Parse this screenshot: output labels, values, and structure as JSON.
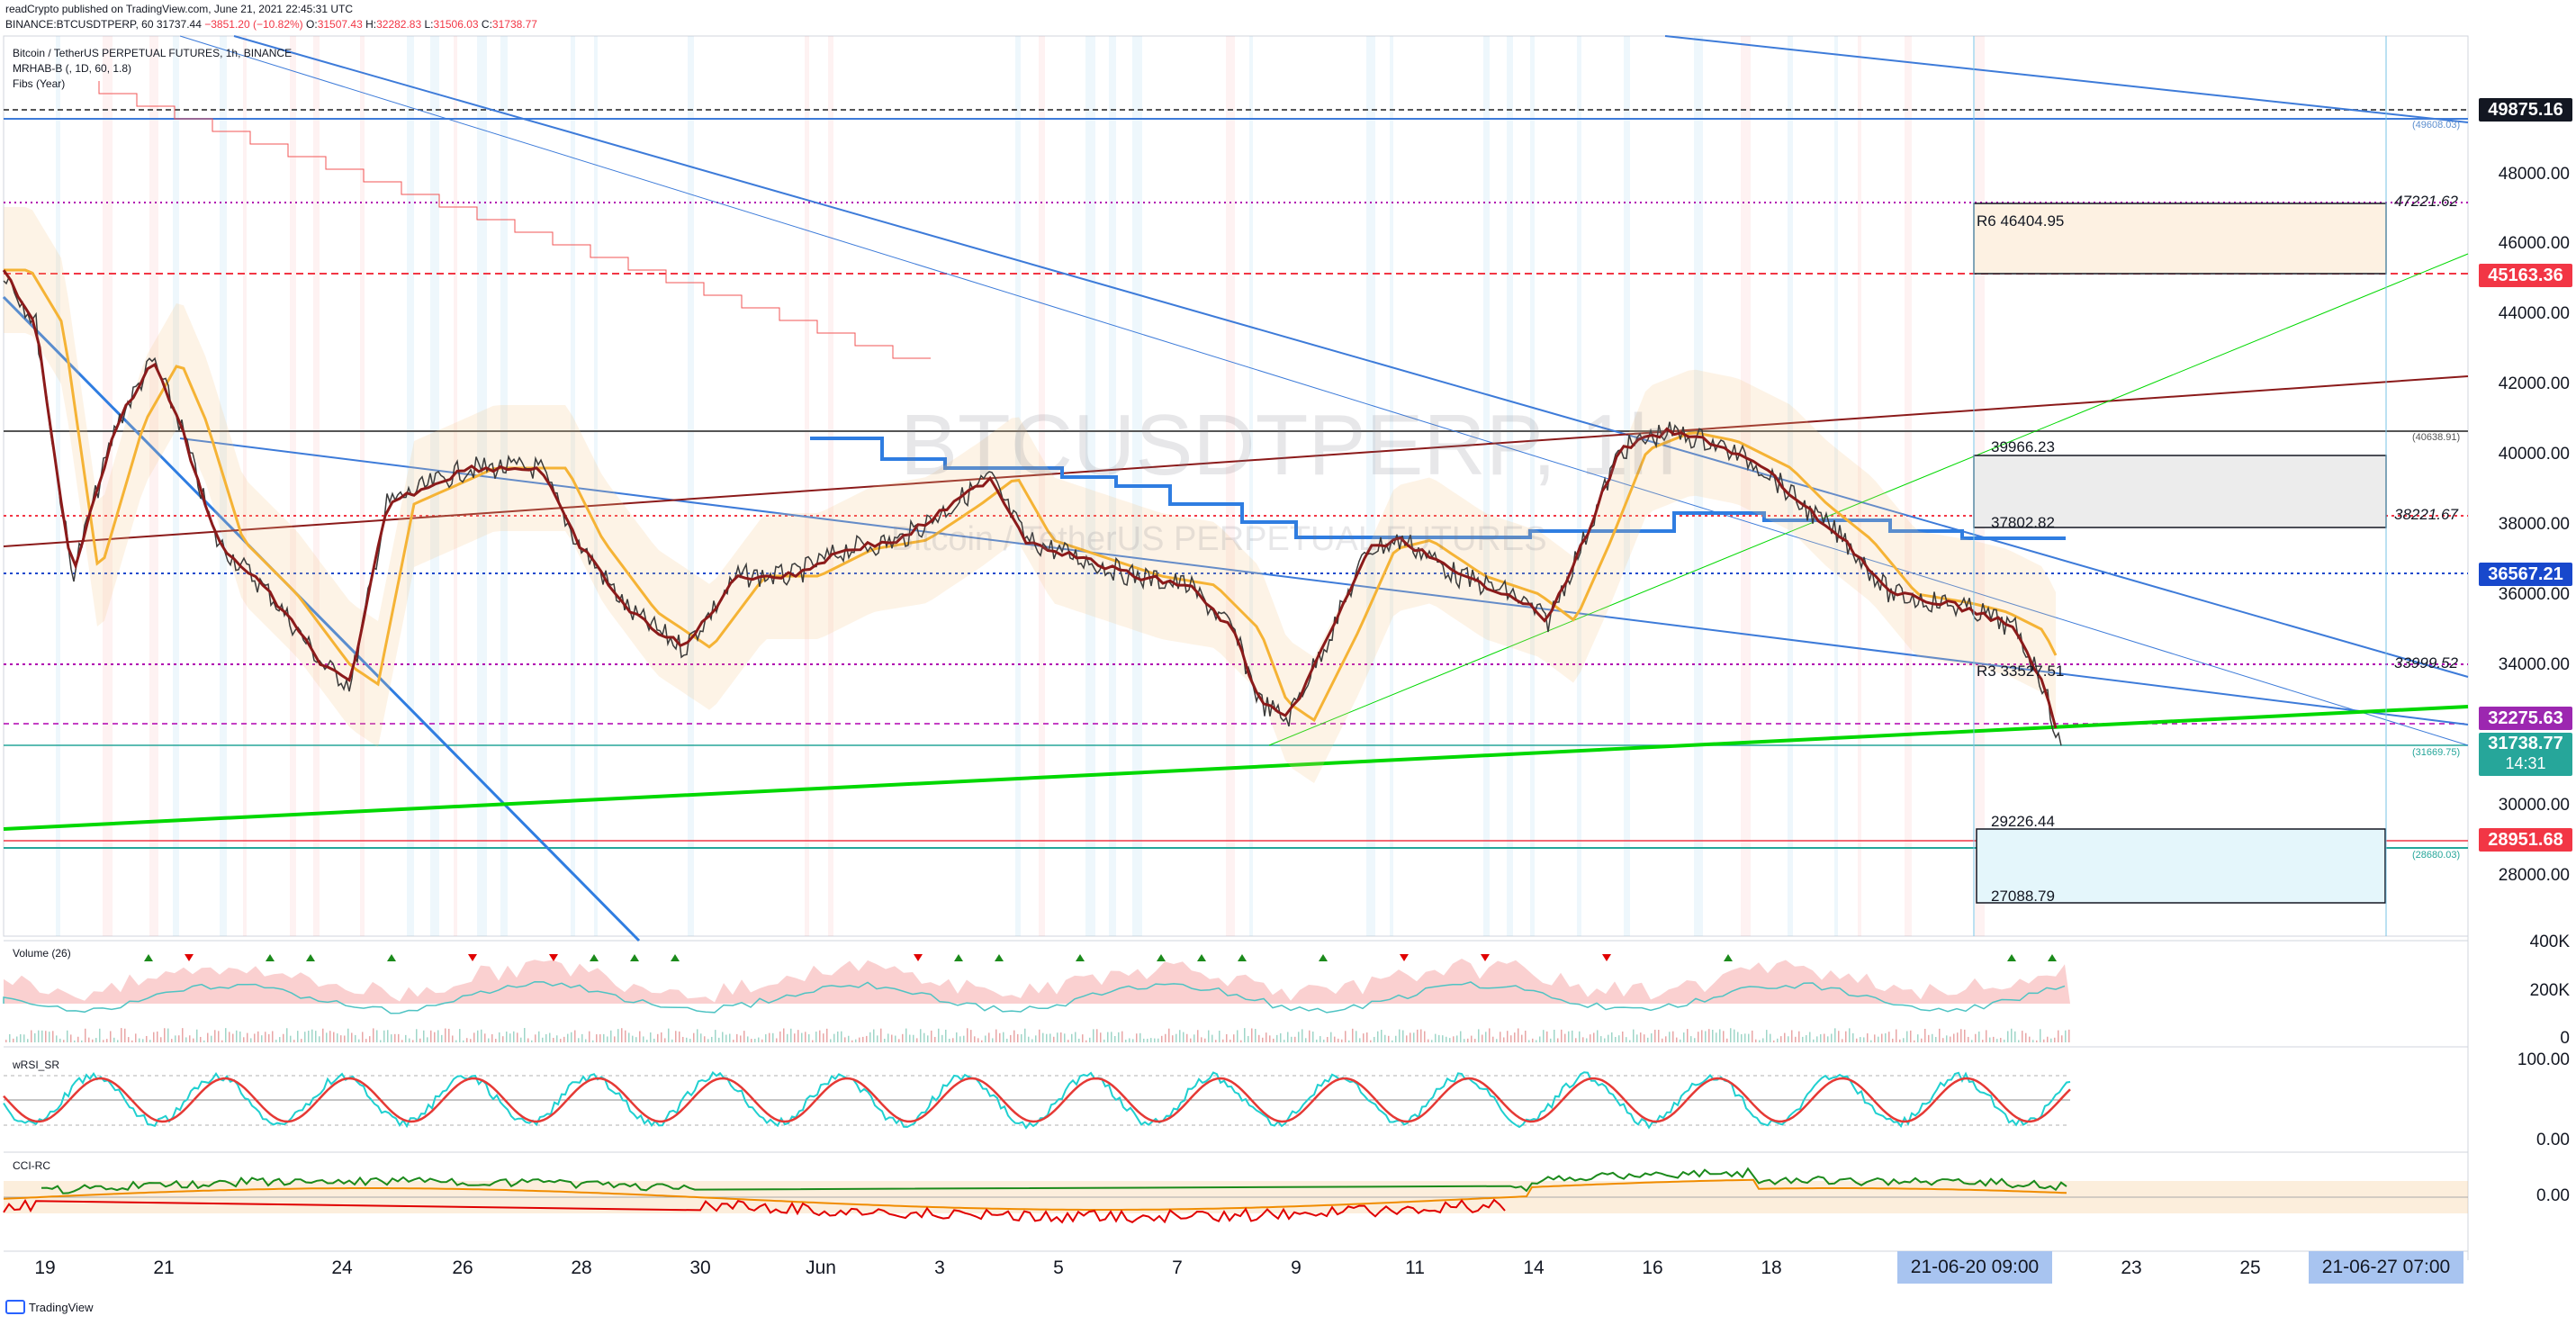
{
  "header": {
    "publisher_line": "readCrypto published on TradingView.com, June 21, 2021 22:45:31 UTC",
    "symbol_line_prefix": "BINANCE:BTCUSDTPERP, 60",
    "last": "31737.44",
    "change": "−3851.20 (−10.82%)",
    "o_label": "O:",
    "o": "31507.43",
    "h_label": "H:",
    "h": "32282.83",
    "l_label": "L:",
    "l": "31506.03",
    "c_label": "C:",
    "c": "31738.77"
  },
  "legend": {
    "title": "Bitcoin / TetherUS PERPETUAL FUTURES, 1h, BINANCE",
    "indicator1": "MRHAB-B (, 1D, 60, 1.8)",
    "indicator2": "Fibs (Year)"
  },
  "watermark": {
    "symbol": "BTCUSDTPERP, 1h",
    "description": "Bitcoin / TetherUS PERPETUAL FUTURES"
  },
  "price_axis": {
    "labels": [
      "48000.00",
      "46000.00",
      "44000.00",
      "42000.00",
      "40000.00",
      "38000.00",
      "36000.00",
      "34000.00",
      "30000.00",
      "28000.00"
    ],
    "tags": [
      {
        "value": "49875.16",
        "color": "#131722"
      },
      {
        "value": "45163.36",
        "color": "#f23645"
      },
      {
        "value": "36567.21",
        "color": "#1848cc"
      },
      {
        "value": "32275.63",
        "color": "#9c27b0"
      },
      {
        "value": "31738.77",
        "color": "#26a69a"
      },
      {
        "value": "28951.68",
        "color": "#f23645"
      }
    ],
    "countdown": "14:31"
  },
  "level_labels": {
    "l47221": "47221.62",
    "l38221": "38221.67",
    "l33999": "33999.52",
    "tiny_49608": "(49608.03)",
    "tiny_40638": "(40638.91)",
    "tiny_31669": "(31669.75)",
    "tiny_28680": "(28680.03)"
  },
  "boxes": {
    "r6": "R6  46404.95",
    "upper_top": "39966.23",
    "upper_bottom": "37802.82",
    "r3": "R3  33527.51",
    "lower_top": "29226.44",
    "lower_bottom": "27088.79"
  },
  "panes": {
    "volume": {
      "title": "Volume (26)",
      "labels": [
        "400K",
        "200K",
        "0"
      ]
    },
    "wrsi": {
      "title": "wRSI_SR",
      "labels": [
        "100.00",
        "0.00"
      ]
    },
    "cci": {
      "title": "CCI-RC",
      "labels": [
        "0.00"
      ]
    }
  },
  "x_axis": {
    "labels": [
      "19",
      "21",
      "24",
      "26",
      "28",
      "30",
      "Jun",
      "3",
      "5",
      "7",
      "9",
      "11",
      "14",
      "16",
      "18",
      "23",
      "25"
    ],
    "tag1": "21-06-20   09:00",
    "tag2": "21-06-27   07:00"
  },
  "footer": {
    "brand": "TradingView"
  },
  "colors": {
    "green_line": "#00e600",
    "brown_line": "#8b1a1a",
    "blue_line": "#3d7bd9",
    "heavy_blue": "#2f7de1",
    "magenta_dots": "#b000b0",
    "red_dash": "#f23645"
  }
}
